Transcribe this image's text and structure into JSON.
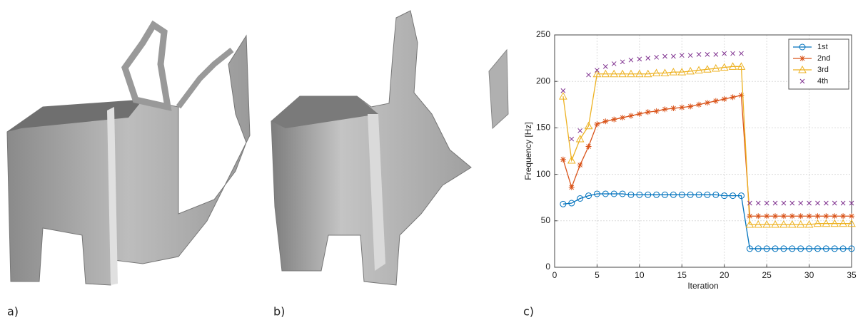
{
  "panels": [
    "a)",
    "b)",
    "c)"
  ],
  "chart_data": {
    "type": "line",
    "x_label": "Iteration",
    "y_label": "Frequency [Hz]",
    "x": [
      1,
      2,
      3,
      4,
      5,
      6,
      7,
      8,
      9,
      10,
      11,
      12,
      13,
      14,
      15,
      16,
      17,
      18,
      19,
      20,
      21,
      22,
      23,
      24,
      25,
      26,
      27,
      28,
      29,
      30,
      31,
      32,
      33,
      34,
      35
    ],
    "xlim": [
      0,
      35
    ],
    "xticks": [
      0,
      5,
      10,
      15,
      20,
      25,
      30,
      35
    ],
    "ylim": [
      0,
      250
    ],
    "yticks": [
      0,
      50,
      100,
      150,
      200,
      250
    ],
    "grid": true,
    "legend": "top-right",
    "series": [
      {
        "name": "1st",
        "color": "#0072bd",
        "marker": "circle",
        "line": true,
        "values": [
          68,
          69,
          74,
          77,
          79,
          79,
          79,
          79,
          78,
          78,
          78,
          78,
          78,
          78,
          78,
          78,
          78,
          78,
          78,
          77,
          77,
          77,
          20,
          20,
          20,
          20,
          20,
          20,
          20,
          20,
          20,
          20,
          20,
          20,
          20
        ]
      },
      {
        "name": "2nd",
        "color": "#d95319",
        "marker": "star",
        "line": true,
        "values": [
          116,
          86,
          110,
          130,
          154,
          157,
          159,
          161,
          163,
          165,
          167,
          168,
          170,
          171,
          172,
          173,
          175,
          177,
          179,
          181,
          183,
          185,
          55,
          55,
          55,
          55,
          55,
          55,
          55,
          55,
          55,
          55,
          55,
          55,
          55
        ]
      },
      {
        "name": "3rd",
        "color": "#edb120",
        "marker": "triangle",
        "line": true,
        "values": [
          184,
          115,
          138,
          152,
          208,
          208,
          208,
          208,
          208,
          208,
          208,
          209,
          209,
          210,
          210,
          211,
          212,
          213,
          214,
          215,
          216,
          216,
          46,
          46,
          46,
          46,
          46,
          46,
          46,
          46,
          47,
          47,
          47,
          47,
          47
        ]
      },
      {
        "name": "4th",
        "color": "#7e2f8e",
        "marker": "x",
        "line": false,
        "values": [
          190,
          138,
          147,
          207,
          212,
          216,
          219,
          221,
          223,
          224,
          225,
          226,
          227,
          227,
          228,
          228,
          229,
          229,
          229,
          230,
          230,
          230,
          69,
          69,
          69,
          69,
          69,
          69,
          69,
          69,
          69,
          69,
          69,
          69,
          69
        ]
      }
    ]
  }
}
